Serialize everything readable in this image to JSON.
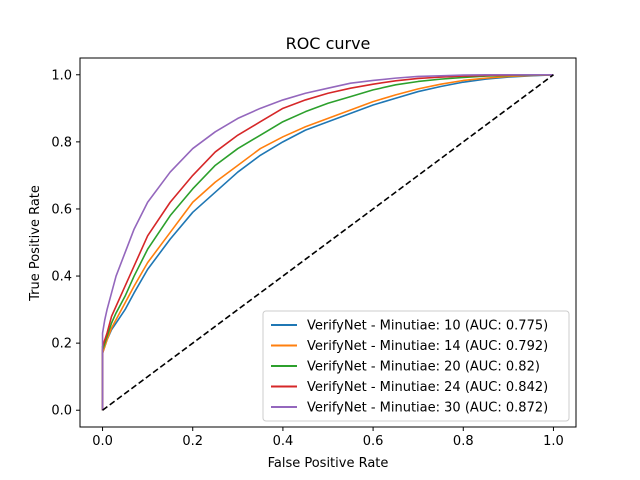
{
  "chart_data": {
    "type": "line",
    "title": "ROC curve",
    "xlabel": "False Positive Rate",
    "ylabel": "True Positive Rate",
    "xlim": [
      -0.05,
      1.05
    ],
    "ylim": [
      -0.05,
      1.05
    ],
    "xticks": [
      0.0,
      0.2,
      0.4,
      0.6,
      0.8,
      1.0
    ],
    "yticks": [
      0.0,
      0.2,
      0.4,
      0.6,
      0.8,
      1.0
    ],
    "xtick_labels": [
      "0.0",
      "0.2",
      "0.4",
      "0.6",
      "0.8",
      "1.0"
    ],
    "ytick_labels": [
      "0.0",
      "0.2",
      "0.4",
      "0.6",
      "0.8",
      "1.0"
    ],
    "grid": false,
    "legend_position": "lower-right",
    "series": [
      {
        "name": "VerifyNet - Minutiae: 10 (AUC: 0.775)",
        "color": "#1f77b4",
        "x": [
          0,
          0,
          0.005,
          0.01,
          0.02,
          0.03,
          0.05,
          0.07,
          0.1,
          0.15,
          0.2,
          0.25,
          0.3,
          0.35,
          0.4,
          0.45,
          0.5,
          0.55,
          0.6,
          0.65,
          0.7,
          0.75,
          0.8,
          0.85,
          0.9,
          0.95,
          1.0
        ],
        "y": [
          0,
          0.17,
          0.19,
          0.21,
          0.24,
          0.26,
          0.3,
          0.35,
          0.42,
          0.51,
          0.59,
          0.65,
          0.71,
          0.76,
          0.8,
          0.835,
          0.86,
          0.885,
          0.91,
          0.93,
          0.95,
          0.965,
          0.978,
          0.987,
          0.993,
          0.997,
          1.0
        ]
      },
      {
        "name": "VerifyNet - Minutiae: 14 (AUC: 0.792)",
        "color": "#ff7f0e",
        "x": [
          0,
          0,
          0.005,
          0.01,
          0.02,
          0.03,
          0.05,
          0.07,
          0.1,
          0.15,
          0.2,
          0.25,
          0.3,
          0.35,
          0.4,
          0.45,
          0.5,
          0.55,
          0.6,
          0.65,
          0.7,
          0.75,
          0.8,
          0.85,
          0.9,
          0.95,
          1.0
        ],
        "y": [
          0,
          0.17,
          0.19,
          0.21,
          0.245,
          0.27,
          0.32,
          0.37,
          0.44,
          0.53,
          0.62,
          0.68,
          0.73,
          0.78,
          0.815,
          0.845,
          0.87,
          0.895,
          0.92,
          0.94,
          0.958,
          0.972,
          0.983,
          0.99,
          0.995,
          0.998,
          1.0
        ]
      },
      {
        "name": "VerifyNet - Minutiae: 20 (AUC: 0.82)",
        "color": "#2ca02c",
        "x": [
          0,
          0,
          0.005,
          0.01,
          0.02,
          0.03,
          0.05,
          0.07,
          0.1,
          0.15,
          0.2,
          0.25,
          0.3,
          0.35,
          0.4,
          0.45,
          0.5,
          0.55,
          0.6,
          0.65,
          0.7,
          0.75,
          0.8,
          0.85,
          0.9,
          0.95,
          1.0
        ],
        "y": [
          0,
          0.18,
          0.2,
          0.22,
          0.26,
          0.29,
          0.34,
          0.4,
          0.48,
          0.58,
          0.66,
          0.73,
          0.78,
          0.82,
          0.86,
          0.89,
          0.915,
          0.935,
          0.955,
          0.97,
          0.98,
          0.987,
          0.992,
          0.996,
          0.998,
          0.999,
          1.0
        ]
      },
      {
        "name": "VerifyNet - Minutiae: 24 (AUC: 0.842)",
        "color": "#d62728",
        "x": [
          0,
          0,
          0.005,
          0.01,
          0.02,
          0.03,
          0.05,
          0.07,
          0.1,
          0.15,
          0.2,
          0.25,
          0.3,
          0.35,
          0.4,
          0.45,
          0.5,
          0.55,
          0.6,
          0.65,
          0.7,
          0.75,
          0.8,
          0.85,
          0.9,
          0.95,
          1.0
        ],
        "y": [
          0,
          0.19,
          0.21,
          0.23,
          0.28,
          0.31,
          0.37,
          0.43,
          0.52,
          0.62,
          0.7,
          0.77,
          0.82,
          0.86,
          0.9,
          0.925,
          0.945,
          0.96,
          0.972,
          0.982,
          0.989,
          0.993,
          0.996,
          0.998,
          0.999,
          1.0,
          1.0
        ]
      },
      {
        "name": "VerifyNet - Minutiae: 30 (AUC: 0.872)",
        "color": "#9467bd",
        "x": [
          0,
          0,
          0.005,
          0.01,
          0.02,
          0.03,
          0.05,
          0.07,
          0.1,
          0.15,
          0.2,
          0.25,
          0.3,
          0.35,
          0.4,
          0.45,
          0.5,
          0.55,
          0.6,
          0.65,
          0.7,
          0.75,
          0.8,
          0.85,
          0.9,
          0.95,
          1.0
        ],
        "y": [
          0,
          0.23,
          0.27,
          0.3,
          0.35,
          0.4,
          0.47,
          0.54,
          0.62,
          0.71,
          0.78,
          0.83,
          0.87,
          0.9,
          0.925,
          0.945,
          0.96,
          0.975,
          0.983,
          0.99,
          0.995,
          0.997,
          0.999,
          1.0,
          1.0,
          1.0,
          1.0
        ]
      }
    ],
    "reference_line": {
      "name": "chance",
      "color": "#000000",
      "style": "dashed",
      "x": [
        0,
        1
      ],
      "y": [
        0,
        1
      ]
    }
  }
}
